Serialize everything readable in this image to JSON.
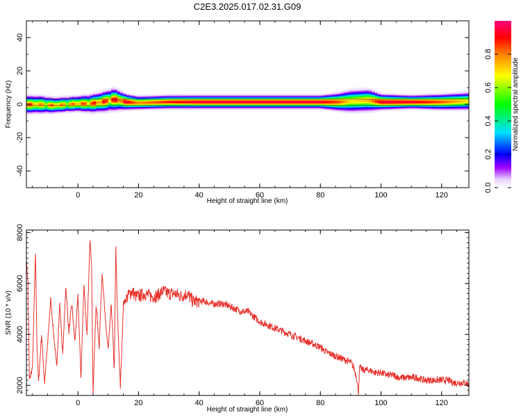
{
  "title": "C2E3.2025.017.02.31.G09",
  "chart_data": [
    {
      "type": "heatmap",
      "xlabel": "Height of straight line (km)",
      "ylabel": "Frequency (Hz)",
      "xlim": [
        -17,
        129
      ],
      "ylim": [
        -50,
        50
      ],
      "xticks": [
        0,
        20,
        40,
        60,
        80,
        100,
        120
      ],
      "yticks": [
        -40,
        -20,
        0,
        20,
        40
      ],
      "grid": false,
      "colorbar": {
        "label": "Normalized spectral amplitude",
        "range": [
          0.0,
          1.0
        ],
        "ticks": [
          0.0,
          0.2,
          0.4,
          0.6,
          0.8
        ]
      },
      "ridge": {
        "description_free": true,
        "x_km": [
          -17,
          -12,
          -8,
          -4,
          0,
          4,
          8,
          12,
          16,
          20,
          30,
          40,
          60,
          80,
          86,
          90,
          96,
          100,
          110,
          120,
          129
        ],
        "center_hz": [
          0,
          0,
          -0.5,
          0,
          0.5,
          0.5,
          1.5,
          3,
          1.5,
          1,
          1.5,
          1.5,
          1.5,
          1.5,
          1.5,
          2,
          2.5,
          1.5,
          1.5,
          1.5,
          2
        ],
        "halfwidth_hz": [
          4,
          4,
          3.5,
          3.5,
          3.5,
          4,
          4.5,
          5,
          3.5,
          3,
          3,
          3,
          3,
          3,
          4,
          5,
          5,
          3.5,
          3,
          3.5,
          4
        ],
        "peak_amplitude": [
          0.9,
          0.8,
          0.85,
          0.8,
          0.85,
          0.9,
          0.9,
          0.95,
          0.95,
          0.8,
          0.9,
          0.95,
          0.95,
          0.95,
          0.85,
          0.7,
          0.75,
          0.95,
          0.95,
          0.85,
          0.7
        ]
      }
    },
    {
      "type": "line",
      "xlabel": "Height of straight line (km)",
      "ylabel": "SNR (10 * v/v)",
      "xlim": [
        -17,
        129
      ],
      "ylim": [
        1600,
        8100
      ],
      "xticks": [
        0,
        20,
        40,
        60,
        80,
        100,
        120
      ],
      "yticks": [
        2000,
        4000,
        6000,
        8000
      ],
      "grid": false,
      "series": [
        {
          "color": "#e8302a",
          "x": [
            -17,
            -16.5,
            -16,
            -15,
            -14,
            -13.5,
            -13,
            -12,
            -11,
            -10,
            -9,
            -8,
            -7,
            -6,
            -5,
            -4,
            -3,
            -2,
            -1,
            0,
            1,
            2,
            3,
            4,
            4.5,
            5,
            6,
            7,
            8,
            9,
            10,
            11,
            12,
            12.5,
            13,
            14,
            15,
            16,
            17,
            18,
            19,
            20,
            22,
            24,
            26,
            28,
            30,
            32,
            34,
            36,
            38,
            40,
            42,
            44,
            46,
            48,
            50,
            52,
            54,
            56,
            58,
            60,
            62,
            64,
            66,
            68,
            70,
            72,
            74,
            76,
            78,
            80,
            82,
            84,
            86,
            88,
            90,
            91,
            92,
            92.5,
            93,
            94,
            96,
            98,
            100,
            102,
            104,
            106,
            108,
            110,
            112,
            114,
            116,
            118,
            120,
            122,
            124,
            126,
            128,
            129
          ],
          "y": [
            6900,
            6100,
            2200,
            2700,
            7200,
            3500,
            2100,
            4000,
            2100,
            3600,
            5400,
            4000,
            2700,
            5200,
            3200,
            5900,
            4100,
            5200,
            3700,
            5500,
            2300,
            6000,
            3900,
            7800,
            6800,
            1700,
            5200,
            3500,
            6500,
            4600,
            3400,
            5200,
            2600,
            7400,
            5000,
            1900,
            5200,
            5400,
            5600,
            5700,
            5500,
            5500,
            5600,
            5500,
            5500,
            5700,
            5600,
            5600,
            5500,
            5600,
            5300,
            5300,
            5300,
            5200,
            5200,
            5200,
            5100,
            5000,
            4900,
            4900,
            4700,
            4500,
            4400,
            4300,
            4200,
            4100,
            4000,
            3900,
            3800,
            3700,
            3600,
            3500,
            3300,
            3200,
            3100,
            3000,
            2900,
            2700,
            2300,
            1700,
            2700,
            2600,
            2600,
            2500,
            2500,
            2400,
            2400,
            2300,
            2300,
            2300,
            2300,
            2200,
            2200,
            2200,
            2200,
            2200,
            2100,
            2100,
            2100,
            2000
          ]
        }
      ]
    }
  ]
}
